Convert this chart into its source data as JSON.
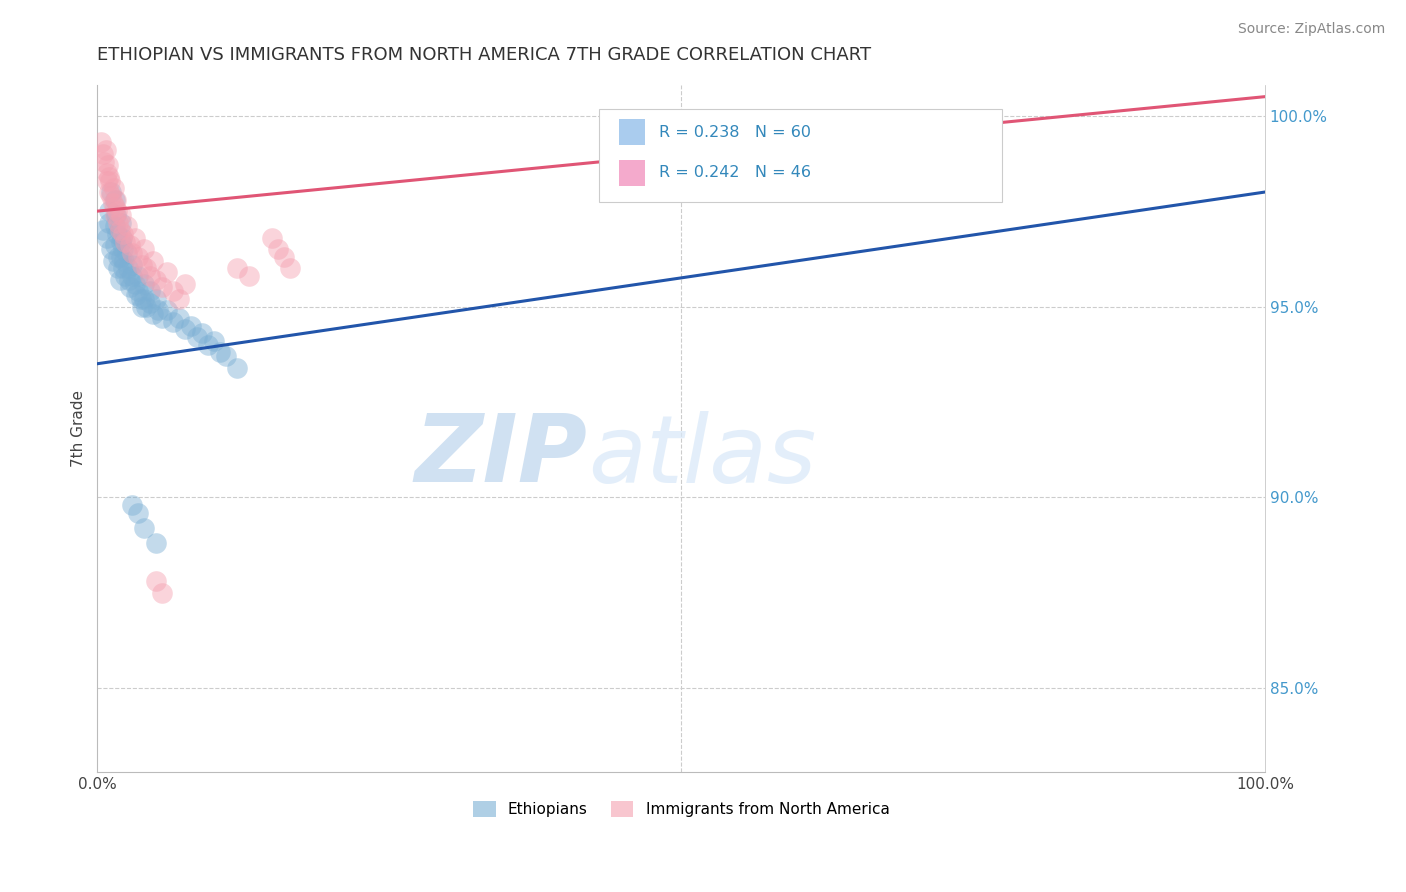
{
  "title": "ETHIOPIAN VS IMMIGRANTS FROM NORTH AMERICA 7TH GRADE CORRELATION CHART",
  "source_text": "Source: ZipAtlas.com",
  "ylabel": "7th Grade",
  "xlim": [
    0.0,
    1.0
  ],
  "ylim": [
    0.828,
    1.008
  ],
  "y_ticks_right": [
    0.85,
    0.9,
    0.95,
    1.0
  ],
  "y_tick_labels_right": [
    "85.0%",
    "90.0%",
    "95.0%",
    "100.0%"
  ],
  "blue_color": "#7BAFD4",
  "pink_color": "#F4A0B0",
  "blue_line_color": "#2255AA",
  "pink_line_color": "#E05575",
  "legend_label_blue": "Ethiopians",
  "legend_label_pink": "Immigrants from North America",
  "watermark_zip": "ZIP",
  "watermark_atlas": "atlas",
  "blue_scatter_x": [
    0.005,
    0.008,
    0.01,
    0.01,
    0.012,
    0.012,
    0.013,
    0.015,
    0.015,
    0.015,
    0.016,
    0.017,
    0.018,
    0.018,
    0.019,
    0.02,
    0.02,
    0.02,
    0.021,
    0.022,
    0.022,
    0.023,
    0.024,
    0.025,
    0.026,
    0.027,
    0.028,
    0.03,
    0.03,
    0.032,
    0.033,
    0.035,
    0.035,
    0.037,
    0.038,
    0.04,
    0.04,
    0.042,
    0.045,
    0.045,
    0.048,
    0.05,
    0.052,
    0.055,
    0.06,
    0.065,
    0.07,
    0.075,
    0.08,
    0.085,
    0.09,
    0.095,
    0.1,
    0.105,
    0.11,
    0.12,
    0.03,
    0.035,
    0.04,
    0.05
  ],
  "blue_scatter_y": [
    0.97,
    0.968,
    0.975,
    0.972,
    0.98,
    0.965,
    0.962,
    0.978,
    0.971,
    0.966,
    0.974,
    0.969,
    0.963,
    0.96,
    0.957,
    0.972,
    0.967,
    0.963,
    0.968,
    0.965,
    0.96,
    0.962,
    0.958,
    0.964,
    0.96,
    0.957,
    0.955,
    0.961,
    0.958,
    0.956,
    0.953,
    0.958,
    0.954,
    0.952,
    0.95,
    0.956,
    0.952,
    0.95,
    0.954,
    0.951,
    0.948,
    0.952,
    0.949,
    0.947,
    0.949,
    0.946,
    0.947,
    0.944,
    0.945,
    0.942,
    0.943,
    0.94,
    0.941,
    0.938,
    0.937,
    0.934,
    0.898,
    0.896,
    0.892,
    0.888
  ],
  "pink_scatter_x": [
    0.003,
    0.005,
    0.006,
    0.007,
    0.008,
    0.008,
    0.009,
    0.01,
    0.01,
    0.011,
    0.012,
    0.013,
    0.014,
    0.015,
    0.015,
    0.016,
    0.017,
    0.018,
    0.019,
    0.02,
    0.022,
    0.024,
    0.025,
    0.028,
    0.03,
    0.032,
    0.035,
    0.038,
    0.04,
    0.042,
    0.045,
    0.048,
    0.05,
    0.055,
    0.06,
    0.065,
    0.07,
    0.075,
    0.15,
    0.155,
    0.16,
    0.165,
    0.05,
    0.055,
    0.12,
    0.13
  ],
  "pink_scatter_y": [
    0.993,
    0.99,
    0.988,
    0.991,
    0.985,
    0.983,
    0.987,
    0.984,
    0.98,
    0.983,
    0.979,
    0.977,
    0.981,
    0.976,
    0.974,
    0.978,
    0.975,
    0.972,
    0.97,
    0.974,
    0.969,
    0.967,
    0.971,
    0.966,
    0.964,
    0.968,
    0.963,
    0.961,
    0.965,
    0.96,
    0.958,
    0.962,
    0.957,
    0.955,
    0.959,
    0.954,
    0.952,
    0.956,
    0.968,
    0.965,
    0.963,
    0.96,
    0.878,
    0.875,
    0.96,
    0.958
  ],
  "blue_trend_x": [
    0.0,
    1.0
  ],
  "blue_trend_y": [
    0.935,
    0.98
  ],
  "pink_trend_x": [
    0.0,
    1.0
  ],
  "pink_trend_y": [
    0.975,
    1.005
  ]
}
